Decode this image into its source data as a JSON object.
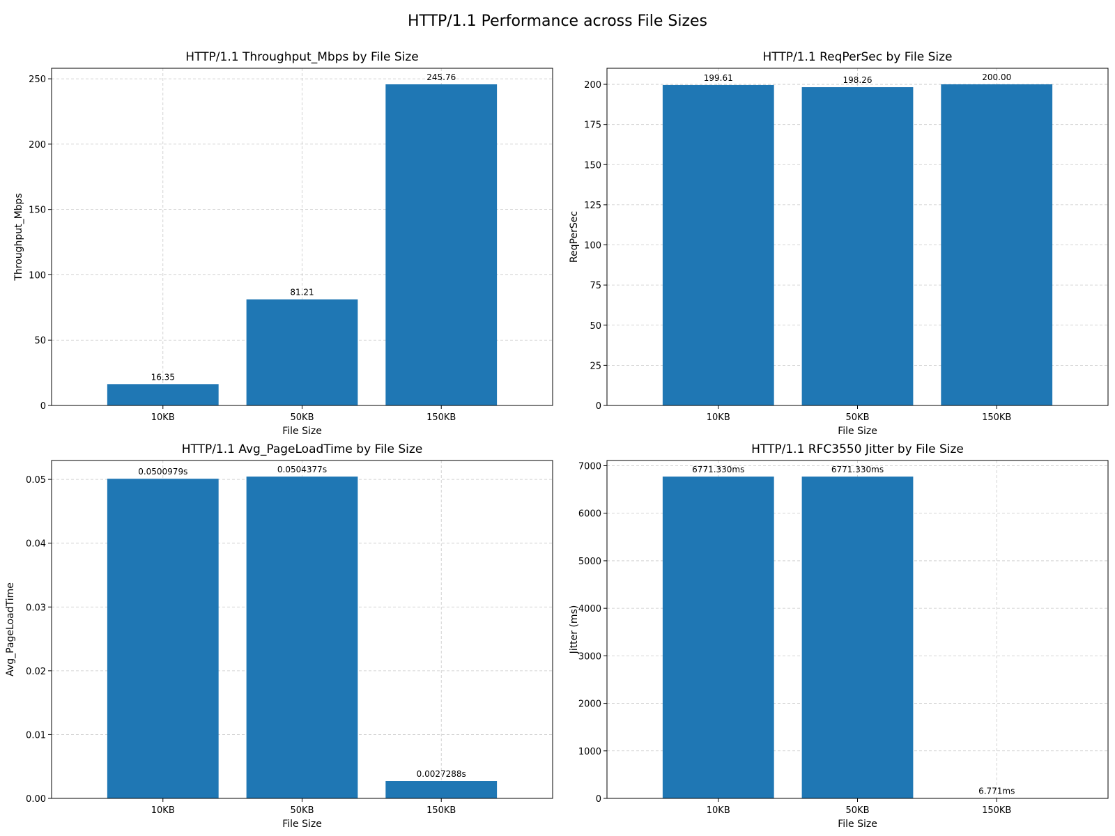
{
  "figure_title": "HTTP/1.1 Performance across File Sizes",
  "colors": {
    "bar": "#1f77b4",
    "grid": "#b0b0b0",
    "axis": "#000000"
  },
  "chart_data": [
    {
      "type": "bar",
      "title": "HTTP/1.1 Throughput_Mbps by File Size",
      "xlabel": "File Size",
      "ylabel": "Throughput_Mbps",
      "categories": [
        "10KB",
        "50KB",
        "150KB"
      ],
      "values": [
        16.35,
        81.21,
        245.76
      ],
      "labels": [
        "16.35",
        "81.21",
        "245.76"
      ],
      "ylim": [
        0,
        258.05
      ],
      "yticks": [
        0,
        50,
        100,
        150,
        200,
        250
      ],
      "ytick_labels": [
        "0",
        "50",
        "100",
        "150",
        "200",
        "250"
      ],
      "grid": true
    },
    {
      "type": "bar",
      "title": "HTTP/1.1 ReqPerSec by File Size",
      "xlabel": "File Size",
      "ylabel": "ReqPerSec",
      "categories": [
        "10KB",
        "50KB",
        "150KB"
      ],
      "values": [
        199.61,
        198.26,
        200.0
      ],
      "labels": [
        "199.61",
        "198.26",
        "200.00"
      ],
      "ylim": [
        0,
        210
      ],
      "yticks": [
        0,
        25,
        50,
        75,
        100,
        125,
        150,
        175,
        200
      ],
      "ytick_labels": [
        "0",
        "25",
        "50",
        "75",
        "100",
        "125",
        "150",
        "175",
        "200"
      ],
      "grid": true
    },
    {
      "type": "bar",
      "title": "HTTP/1.1 Avg_PageLoadTime by File Size",
      "xlabel": "File Size",
      "ylabel": "Avg_PageLoadTime",
      "categories": [
        "10KB",
        "50KB",
        "150KB"
      ],
      "values": [
        0.0500979,
        0.0504377,
        0.0027288
      ],
      "labels": [
        "0.0500979s",
        "0.0504377s",
        "0.0027288s"
      ],
      "ylim": [
        0,
        0.05296
      ],
      "yticks": [
        0,
        0.01,
        0.02,
        0.03,
        0.04,
        0.05
      ],
      "ytick_labels": [
        "0.00",
        "0.01",
        "0.02",
        "0.03",
        "0.04",
        "0.05"
      ],
      "grid": true
    },
    {
      "type": "bar",
      "title": "HTTP/1.1 RFC3550 Jitter by File Size",
      "xlabel": "File Size",
      "ylabel": "Jitter (ms)",
      "categories": [
        "10KB",
        "50KB",
        "150KB"
      ],
      "values": [
        6771.33,
        6771.33,
        6.771
      ],
      "labels": [
        "6771.330ms",
        "6771.330ms",
        "6.771ms"
      ],
      "ylim": [
        0,
        7110
      ],
      "yticks": [
        0,
        1000,
        2000,
        3000,
        4000,
        5000,
        6000,
        7000
      ],
      "ytick_labels": [
        "0",
        "1000",
        "2000",
        "3000",
        "4000",
        "5000",
        "6000",
        "7000"
      ],
      "grid": true
    }
  ]
}
